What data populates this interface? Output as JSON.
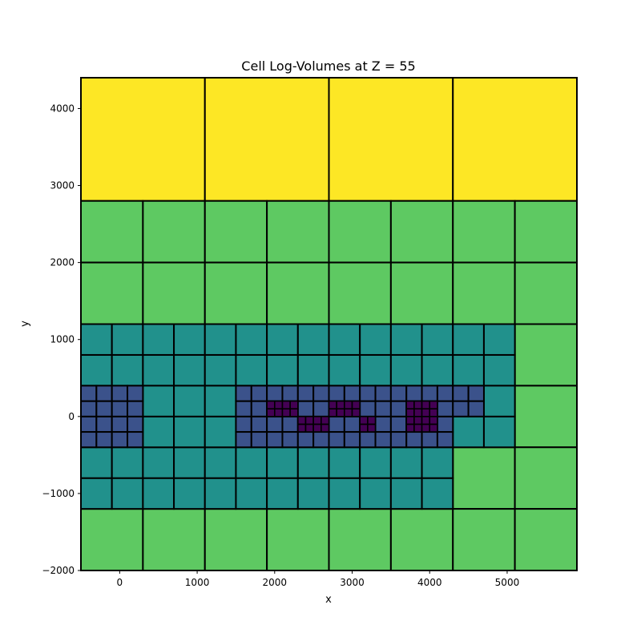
{
  "chart_data": {
    "type": "heatmap",
    "title": "Cell Log-Volumes at Z = 55",
    "xlabel": "x",
    "ylabel": "y",
    "xlim": [
      -500,
      5900
    ],
    "ylim": [
      -2000,
      4400
    ],
    "xticks": [
      0,
      1000,
      2000,
      3000,
      4000,
      5000
    ],
    "yticks": [
      -2000,
      -1000,
      0,
      1000,
      2000,
      3000,
      4000
    ],
    "colormap": "viridis",
    "colors": {
      "level_0": "#440154",
      "level_1": "#3b528b",
      "level_2": "#21918c",
      "level_3": "#5ec962",
      "level_4": "#fde725",
      "edge": "#000000"
    },
    "cells": [
      {
        "x0": -500,
        "x1": 1100,
        "y0": 2800,
        "y1": 4400,
        "level": 4
      },
      {
        "x0": 1100,
        "x1": 2700,
        "y0": 2800,
        "y1": 4400,
        "level": 4
      },
      {
        "x0": 2700,
        "x1": 4300,
        "y0": 2800,
        "y1": 4400,
        "level": 4
      },
      {
        "x0": 4300,
        "x1": 5900,
        "y0": 2800,
        "y1": 4400,
        "level": 4
      },
      {
        "x0": -500,
        "x1": 300,
        "y0": 2000,
        "y1": 2800,
        "level": 3
      },
      {
        "x0": 300,
        "x1": 1100,
        "y0": 2000,
        "y1": 2800,
        "level": 3
      },
      {
        "x0": 1100,
        "x1": 1900,
        "y0": 2000,
        "y1": 2800,
        "level": 3
      },
      {
        "x0": 1900,
        "x1": 2700,
        "y0": 2000,
        "y1": 2800,
        "level": 3
      },
      {
        "x0": 2700,
        "x1": 3500,
        "y0": 2000,
        "y1": 2800,
        "level": 3
      },
      {
        "x0": 3500,
        "x1": 4300,
        "y0": 2000,
        "y1": 2800,
        "level": 3
      },
      {
        "x0": 4300,
        "x1": 5100,
        "y0": 2000,
        "y1": 2800,
        "level": 3
      },
      {
        "x0": 5100,
        "x1": 5900,
        "y0": 2000,
        "y1": 2800,
        "level": 3
      },
      {
        "x0": -500,
        "x1": 300,
        "y0": 1200,
        "y1": 2000,
        "level": 3
      },
      {
        "x0": 300,
        "x1": 1100,
        "y0": 1200,
        "y1": 2000,
        "level": 3
      },
      {
        "x0": 1100,
        "x1": 1900,
        "y0": 1200,
        "y1": 2000,
        "level": 3
      },
      {
        "x0": 1900,
        "x1": 2700,
        "y0": 1200,
        "y1": 2000,
        "level": 3
      },
      {
        "x0": 2700,
        "x1": 3500,
        "y0": 1200,
        "y1": 2000,
        "level": 3
      },
      {
        "x0": 3500,
        "x1": 4300,
        "y0": 1200,
        "y1": 2000,
        "level": 3
      },
      {
        "x0": 4300,
        "x1": 5100,
        "y0": 1200,
        "y1": 2000,
        "level": 3
      },
      {
        "x0": 5100,
        "x1": 5900,
        "y0": 1200,
        "y1": 2000,
        "level": 3
      },
      {
        "x0": 5100,
        "x1": 5900,
        "y0": 400,
        "y1": 1200,
        "level": 3
      },
      {
        "x0": 5100,
        "x1": 5900,
        "y0": -400,
        "y1": 400,
        "level": 3
      },
      {
        "x0": 4300,
        "x1": 5100,
        "y0": -1200,
        "y1": -400,
        "level": 3
      },
      {
        "x0": 5100,
        "x1": 5900,
        "y0": -1200,
        "y1": -400,
        "level": 3
      },
      {
        "x0": -500,
        "x1": 300,
        "y0": -2000,
        "y1": -1200,
        "level": 3
      },
      {
        "x0": 300,
        "x1": 1100,
        "y0": -2000,
        "y1": -1200,
        "level": 3
      },
      {
        "x0": 1100,
        "x1": 1900,
        "y0": -2000,
        "y1": -1200,
        "level": 3
      },
      {
        "x0": 1900,
        "x1": 2700,
        "y0": -2000,
        "y1": -1200,
        "level": 3
      },
      {
        "x0": 2700,
        "x1": 3500,
        "y0": -2000,
        "y1": -1200,
        "level": 3
      },
      {
        "x0": 3500,
        "x1": 4300,
        "y0": -2000,
        "y1": -1200,
        "level": 3
      },
      {
        "x0": 4300,
        "x1": 5100,
        "y0": -2000,
        "y1": -1200,
        "level": 3
      },
      {
        "x0": 5100,
        "x1": 5900,
        "y0": -2000,
        "y1": -1200,
        "level": 3
      },
      {
        "x0": -500,
        "x1": 4300,
        "y0": -1200,
        "y1": -400,
        "level": 2,
        "step": 400
      },
      {
        "x0": -500,
        "x1": 5100,
        "y0": 400,
        "y1": 1200,
        "level": 2,
        "step": 400
      },
      {
        "x0": 300,
        "x1": 1500,
        "y0": -400,
        "y1": 400,
        "level": 2,
        "step": 400
      },
      {
        "x0": 4300,
        "x1": 5100,
        "y0": -400,
        "y1": 0,
        "level": 2,
        "step": 400
      },
      {
        "x0": 4700,
        "x1": 5100,
        "y0": 0,
        "y1": 400,
        "level": 2,
        "step": 400
      },
      {
        "x0": -500,
        "x1": 300,
        "y0": -400,
        "y1": 400,
        "level": 1,
        "step": 200
      },
      {
        "x0": 1500,
        "x1": 4300,
        "y0": -400,
        "y1": 400,
        "level": 1,
        "step": 200
      },
      {
        "x0": 4300,
        "x1": 4700,
        "y0": 0,
        "y1": 400,
        "level": 1,
        "step": 200
      },
      {
        "x0": 1900,
        "x1": 2300,
        "y0": 0,
        "y1": 200,
        "level": 0,
        "step": 100
      },
      {
        "x0": 2300,
        "x1": 2700,
        "y0": -200,
        "y1": 0,
        "level": 0,
        "step": 100
      },
      {
        "x0": 2700,
        "x1": 3100,
        "y0": 0,
        "y1": 200,
        "level": 0,
        "step": 100
      },
      {
        "x0": 3100,
        "x1": 3300,
        "y0": -200,
        "y1": 0,
        "level": 0,
        "step": 100
      },
      {
        "x0": 3700,
        "x1": 4100,
        "y0": -200,
        "y1": 200,
        "level": 0,
        "step": 100
      }
    ],
    "grid": false,
    "legend": "none"
  }
}
